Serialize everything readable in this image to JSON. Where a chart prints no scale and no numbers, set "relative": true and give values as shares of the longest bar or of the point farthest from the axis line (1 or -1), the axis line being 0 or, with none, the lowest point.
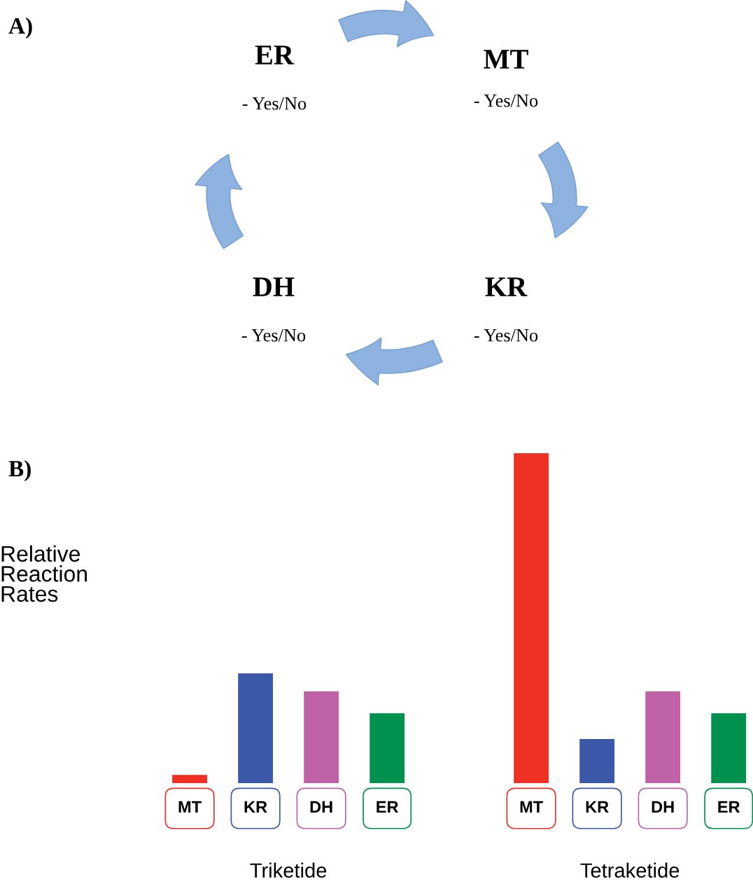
{
  "chart_data": [
    {
      "type": "other",
      "title": "A)",
      "annotations": [
        "ER",
        "- Yes/No",
        "MT",
        "- Yes/No",
        "KR",
        "- Yes/No",
        "DH",
        "- Yes/No"
      ]
    },
    {
      "type": "bar",
      "title": "B)",
      "ylabel": "Relative Reaction Rates",
      "relative": true,
      "categories": [
        "MT",
        "KR",
        "DH",
        "ER",
        "MT",
        "KR",
        "DH",
        "ER"
      ],
      "values": [
        0.025,
        0.333,
        0.278,
        0.212,
        1,
        0.134,
        0.278,
        0.212
      ],
      "colors": [
        "#ee3124",
        "#3c58a8",
        "#c062a8",
        "#00914f",
        "#ee3124",
        "#3c58a8",
        "#c062a8",
        "#00914f"
      ],
      "annotations": [
        "Triketide",
        "Tetraketide"
      ]
    }
  ]
}
